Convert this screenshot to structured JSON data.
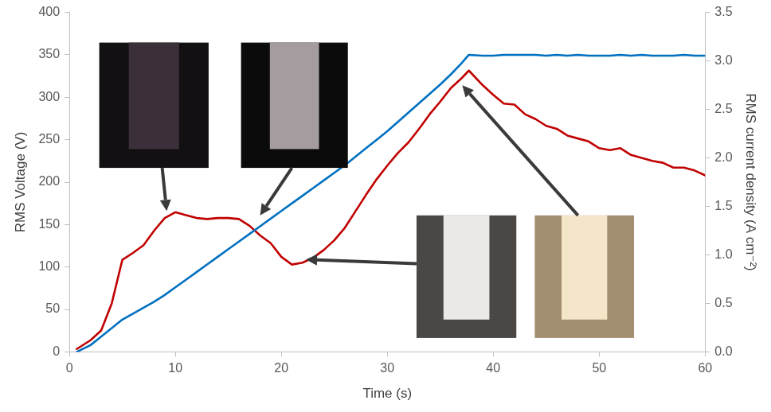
{
  "chart_data": {
    "type": "line",
    "x_label": "Time (s)",
    "y_label": "RMS Voltage (V)",
    "y2_label": "RMS current density (A cm⁻²)",
    "x": [
      0.7,
      2,
      3,
      4,
      5,
      6,
      7,
      8,
      9,
      10,
      11,
      12,
      13,
      14,
      15,
      16,
      17,
      18,
      19,
      20,
      21,
      22,
      23,
      24,
      25,
      26,
      27,
      28,
      29,
      30,
      31,
      32,
      33,
      34,
      35,
      36,
      37,
      37.7,
      39,
      40,
      41,
      42,
      43,
      44,
      45,
      46,
      47,
      48,
      49,
      50,
      51,
      52,
      53,
      54,
      55,
      56,
      57,
      58,
      59,
      60
    ],
    "series": [
      {
        "name": "RMS Voltage (V)",
        "color": "#0070c0",
        "values": [
          0,
          8,
          18,
          28,
          38,
          45,
          52,
          59,
          67,
          76,
          85,
          94,
          103,
          112,
          121,
          130,
          139,
          148,
          157,
          166,
          175,
          184,
          193,
          202,
          211,
          220,
          230,
          240,
          250,
          260,
          271,
          282,
          293,
          304,
          315,
          327,
          340,
          350,
          349,
          349,
          350,
          350,
          350,
          350,
          349,
          350,
          349,
          350,
          349,
          349,
          349,
          350,
          349,
          350,
          349,
          349,
          349,
          350,
          349,
          349
        ]
      },
      {
        "name": "RMS current density (A cm⁻²)",
        "color": "#c00000",
        "axis": "y2",
        "values": [
          0.03,
          0.12,
          0.22,
          0.5,
          0.95,
          1.02,
          1.1,
          1.25,
          1.38,
          1.44,
          1.41,
          1.38,
          1.37,
          1.38,
          1.38,
          1.37,
          1.3,
          1.2,
          1.12,
          0.98,
          0.9,
          0.92,
          0.97,
          1.05,
          1.15,
          1.28,
          1.45,
          1.62,
          1.78,
          1.92,
          2.05,
          2.16,
          2.3,
          2.45,
          2.58,
          2.72,
          2.82,
          2.9,
          2.75,
          2.65,
          2.56,
          2.55,
          2.45,
          2.4,
          2.33,
          2.3,
          2.23,
          2.2,
          2.17,
          2.1,
          2.08,
          2.1,
          2.03,
          2.0,
          1.97,
          1.95,
          1.9,
          1.9,
          1.87,
          1.82
        ]
      }
    ],
    "xlim": [
      0,
      60
    ],
    "xticks": [
      0,
      10,
      20,
      30,
      40,
      50,
      60
    ],
    "ylim": [
      0,
      400
    ],
    "yticks": [
      0,
      50,
      100,
      150,
      200,
      250,
      300,
      350,
      400
    ],
    "y2lim": [
      0,
      3.5
    ],
    "y2ticks": [
      {
        "value": 0,
        "label": "0.0"
      },
      0.5,
      {
        "value": 1,
        "label": "1.0"
      },
      1.5,
      {
        "value": 2,
        "label": "2.0"
      },
      2.5,
      {
        "value": 3,
        "label": "3.0"
      },
      3.5
    ],
    "grid": false
  }
}
